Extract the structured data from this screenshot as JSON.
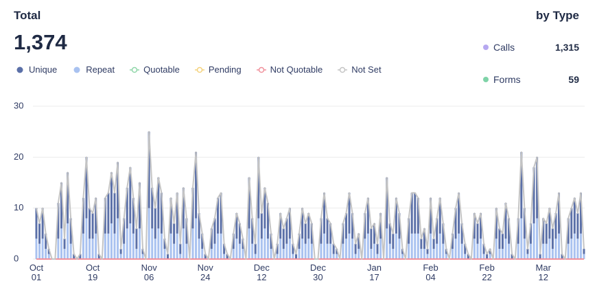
{
  "header": {
    "title": "Total",
    "total": "1,374"
  },
  "by_type": {
    "title": "by Type",
    "items": [
      {
        "name": "Calls",
        "color": "#b6a8f0",
        "label": "1,315"
      },
      {
        "name": "Forms",
        "color": "#7fd3a8",
        "label": "59"
      }
    ]
  },
  "chart_data": {
    "type": "bar",
    "categories": [
      "Oct\n01",
      null,
      null,
      null,
      null,
      null,
      null,
      null,
      null,
      null,
      null,
      null,
      null,
      null,
      null,
      null,
      null,
      null,
      "Oct\n19",
      null,
      null,
      null,
      null,
      null,
      null,
      null,
      null,
      null,
      null,
      null,
      null,
      null,
      null,
      null,
      null,
      null,
      "Nov\n06",
      null,
      null,
      null,
      null,
      null,
      null,
      null,
      null,
      null,
      null,
      null,
      null,
      null,
      null,
      null,
      null,
      null,
      "Nov\n24",
      null,
      null,
      null,
      null,
      null,
      null,
      null,
      null,
      null,
      null,
      null,
      null,
      null,
      null,
      null,
      null,
      null,
      "Dec\n12",
      null,
      null,
      null,
      null,
      null,
      null,
      null,
      null,
      null,
      null,
      null,
      null,
      null,
      null,
      null,
      null,
      null,
      "Dec\n30",
      null,
      null,
      null,
      null,
      null,
      null,
      null,
      null,
      null,
      null,
      null,
      null,
      null,
      null,
      null,
      null,
      null,
      "Jan\n17",
      null,
      null,
      null,
      null,
      null,
      null,
      null,
      null,
      null,
      null,
      null,
      null,
      null,
      null,
      null,
      null,
      null,
      "Feb\n04",
      null,
      null,
      null,
      null,
      null,
      null,
      null,
      null,
      null,
      null,
      null,
      null,
      null,
      null,
      null,
      null,
      null,
      "Feb\n22",
      null,
      null,
      null,
      null,
      null,
      null,
      null,
      null,
      null,
      null,
      null,
      null,
      null,
      null,
      null,
      null,
      null,
      "Mar\n12",
      null,
      null,
      null,
      null,
      null,
      null,
      null,
      null,
      null,
      null,
      null,
      null,
      null
    ],
    "ylim": [
      0,
      30
    ],
    "yticks": [
      0,
      10,
      20,
      30
    ],
    "grid": true,
    "series": [
      {
        "name": "Unique",
        "color": "#5b70a8",
        "style": "bar",
        "values": [
          6,
          4,
          6,
          3,
          1,
          0,
          0,
          7,
          9,
          2,
          10,
          5,
          1,
          0,
          1,
          7,
          12,
          6,
          5,
          7,
          1,
          0,
          7,
          8,
          10,
          8,
          11,
          1,
          5,
          8,
          11,
          7,
          4,
          9,
          1,
          0,
          15,
          8,
          6,
          10,
          8,
          2,
          1,
          7,
          4,
          8,
          2,
          8,
          5,
          0,
          8,
          13,
          5,
          3,
          1,
          0,
          4,
          5,
          7,
          8,
          2,
          1,
          0,
          3,
          5,
          4,
          2,
          0,
          10,
          5,
          2,
          12,
          5,
          8,
          7,
          3,
          0,
          2,
          5,
          4,
          5,
          6,
          2,
          1,
          3,
          6,
          4,
          5,
          4,
          0,
          0,
          5,
          8,
          5,
          4,
          2,
          1,
          0,
          4,
          5,
          8,
          5,
          2,
          3,
          0,
          5,
          7,
          4,
          4,
          2,
          5,
          0,
          10,
          4,
          3,
          7,
          5,
          1,
          0,
          5,
          8,
          8,
          7,
          2,
          4,
          1,
          7,
          2,
          5,
          7,
          4,
          1,
          0,
          3,
          6,
          8,
          4,
          2,
          1,
          0,
          5,
          4,
          5,
          2,
          1,
          1,
          0,
          6,
          4,
          3,
          7,
          5,
          1,
          0,
          5,
          13,
          6,
          1,
          4,
          11,
          12,
          1,
          5,
          4,
          6,
          4,
          5,
          8,
          1,
          0,
          5,
          6,
          7,
          5,
          8,
          1
        ]
      },
      {
        "name": "Repeat",
        "color": "#a9c2f0",
        "style": "bar",
        "values": [
          4,
          3,
          4,
          2,
          1,
          0,
          0,
          4,
          6,
          2,
          7,
          3,
          0,
          0,
          0,
          5,
          8,
          4,
          4,
          5,
          0,
          0,
          5,
          5,
          7,
          5,
          8,
          1,
          3,
          6,
          7,
          5,
          2,
          6,
          1,
          0,
          10,
          6,
          4,
          6,
          5,
          2,
          0,
          5,
          3,
          5,
          1,
          6,
          3,
          0,
          6,
          8,
          4,
          2,
          0,
          0,
          2,
          3,
          5,
          5,
          1,
          0,
          0,
          2,
          4,
          3,
          2,
          0,
          6,
          3,
          1,
          8,
          4,
          6,
          4,
          2,
          0,
          1,
          4,
          2,
          3,
          4,
          1,
          0,
          2,
          4,
          3,
          4,
          3,
          0,
          0,
          3,
          5,
          3,
          3,
          1,
          1,
          0,
          3,
          4,
          5,
          4,
          1,
          2,
          0,
          4,
          5,
          2,
          3,
          1,
          4,
          0,
          6,
          3,
          2,
          5,
          4,
          1,
          0,
          3,
          5,
          5,
          5,
          2,
          2,
          1,
          5,
          2,
          3,
          5,
          3,
          1,
          0,
          2,
          4,
          5,
          3,
          1,
          0,
          0,
          4,
          3,
          4,
          1,
          0,
          1,
          0,
          4,
          2,
          2,
          4,
          3,
          0,
          0,
          3,
          8,
          4,
          1,
          3,
          7,
          8,
          0,
          3,
          3,
          4,
          2,
          4,
          5,
          0,
          0,
          3,
          4,
          5,
          4,
          5,
          1
        ]
      },
      {
        "name": "Quotable",
        "color": "#8fd6a8",
        "style": "line",
        "values": [
          0,
          0,
          0,
          0,
          0,
          0,
          0,
          0,
          0,
          0,
          0,
          0,
          0,
          0,
          0,
          0,
          0,
          0,
          0,
          0,
          0,
          0,
          0,
          0,
          0,
          0,
          0,
          0,
          0,
          0,
          0,
          0,
          0,
          0,
          0,
          0,
          0,
          0,
          0,
          0,
          0,
          0,
          0,
          0,
          0,
          0,
          0,
          0,
          0,
          0,
          0,
          0,
          0,
          0,
          0,
          0,
          0,
          0,
          0,
          0,
          0,
          0,
          0,
          0,
          0,
          0,
          0,
          0,
          0,
          0,
          0,
          0,
          0,
          0,
          0,
          0,
          0,
          0,
          0,
          0,
          0,
          0,
          0,
          0,
          0,
          0,
          0,
          0,
          0,
          0,
          0,
          0,
          0,
          0,
          0,
          0,
          0,
          0,
          0,
          0,
          0,
          0,
          0,
          0,
          0,
          0,
          0,
          0,
          0,
          0,
          0,
          0,
          0,
          0,
          0,
          0,
          0,
          0,
          0,
          0,
          0,
          0,
          0,
          0,
          0,
          0,
          0,
          0,
          0,
          0,
          0,
          0,
          0,
          0,
          0,
          0,
          0,
          0,
          0,
          0,
          0,
          0,
          0,
          0,
          0,
          0,
          0,
          0,
          0,
          0,
          0,
          0,
          0,
          0,
          0,
          0,
          0,
          0,
          0,
          0,
          0,
          0,
          0,
          0,
          0,
          0,
          0,
          0,
          0,
          0,
          0,
          0,
          0,
          0,
          0,
          0
        ]
      },
      {
        "name": "Pending",
        "color": "#f4d27c",
        "style": "line",
        "values": [
          0,
          0,
          0,
          0,
          0,
          0,
          0,
          0,
          0,
          0,
          0,
          0,
          0,
          0,
          0,
          0,
          0,
          0,
          0,
          0,
          0,
          0,
          0,
          0,
          0,
          0,
          0,
          0,
          0,
          0,
          0,
          0,
          0,
          0,
          0,
          0,
          0,
          0,
          0,
          0,
          0,
          0,
          0,
          0,
          0,
          0,
          0,
          0,
          0,
          0,
          0,
          0,
          0,
          0,
          0,
          0,
          0,
          0,
          0,
          0,
          0,
          0,
          0,
          0,
          0,
          0,
          0,
          0,
          0,
          0,
          0,
          0,
          0,
          0,
          0,
          0,
          0,
          0,
          0,
          0,
          0,
          0,
          0,
          0,
          0,
          0,
          0,
          0,
          0,
          0,
          0,
          0,
          0,
          0,
          0,
          0,
          0,
          0,
          0,
          0,
          0,
          0,
          0,
          0,
          0,
          0,
          0,
          0,
          0,
          0,
          0,
          0,
          0,
          0,
          0,
          0,
          0,
          0,
          0,
          0,
          0,
          0,
          0,
          0,
          0,
          0,
          0,
          0,
          0,
          0,
          0,
          0,
          0,
          0,
          0,
          0,
          0,
          0,
          0,
          0,
          0,
          0,
          0,
          0,
          0,
          0,
          0,
          0,
          0,
          0,
          0,
          0,
          0,
          0,
          0,
          0,
          0,
          0,
          0,
          0,
          0,
          0,
          0,
          0,
          0,
          0,
          0,
          0,
          0,
          0,
          0,
          0,
          0,
          0,
          0,
          0
        ]
      },
      {
        "name": "Not Quotable",
        "color": "#f0909b",
        "style": "line",
        "values": [
          0,
          0,
          0,
          0,
          0,
          0,
          0,
          0,
          0,
          0,
          0,
          0,
          0,
          0,
          0,
          0,
          0,
          0,
          0,
          0,
          0,
          0,
          0,
          0,
          0,
          0,
          0,
          0,
          0,
          0,
          0,
          0,
          0,
          0,
          0,
          0,
          0,
          0,
          0,
          0,
          0,
          0,
          0,
          0,
          0,
          0,
          0,
          0,
          0,
          0,
          0,
          0,
          0,
          0,
          0,
          0,
          0,
          0,
          0,
          0,
          0,
          0,
          0,
          0,
          0,
          0,
          0,
          0,
          0,
          0,
          0,
          0,
          0,
          0,
          0,
          0,
          0,
          0,
          0,
          0,
          0,
          0,
          0,
          0,
          0,
          0,
          0,
          0,
          0,
          0,
          0,
          0,
          0,
          0,
          0,
          0,
          0,
          0,
          0,
          0,
          0,
          0,
          0,
          0,
          0,
          0,
          0,
          0,
          0,
          0,
          0,
          0,
          0,
          0,
          0,
          0,
          0,
          0,
          0,
          0,
          0,
          0,
          0,
          0,
          0,
          0,
          0,
          0,
          0,
          0,
          0,
          0,
          0,
          0,
          0,
          0,
          0,
          0,
          0,
          0,
          0,
          0,
          0,
          0,
          0,
          0,
          0,
          0,
          0,
          0,
          0,
          0,
          0,
          0,
          0,
          0,
          0,
          0,
          0,
          0,
          0,
          0,
          0,
          0,
          0,
          0,
          0,
          0,
          0,
          0,
          0,
          0,
          0,
          0,
          0,
          0
        ]
      },
      {
        "name": "Not Set",
        "color": "#c4c4c4",
        "style": "line",
        "values": [
          10,
          7,
          10,
          5,
          2,
          0,
          0,
          11,
          15,
          4,
          17,
          8,
          1,
          0,
          1,
          12,
          20,
          10,
          9,
          12,
          1,
          0,
          12,
          13,
          17,
          13,
          19,
          2,
          8,
          14,
          18,
          12,
          6,
          15,
          2,
          0,
          25,
          14,
          10,
          16,
          13,
          4,
          1,
          12,
          7,
          13,
          3,
          14,
          8,
          0,
          14,
          21,
          9,
          5,
          1,
          0,
          6,
          8,
          12,
          13,
          3,
          1,
          0,
          5,
          9,
          7,
          4,
          0,
          16,
          8,
          3,
          20,
          9,
          14,
          11,
          5,
          0,
          3,
          9,
          6,
          8,
          10,
          3,
          1,
          5,
          10,
          7,
          9,
          7,
          0,
          0,
          8,
          13,
          8,
          7,
          3,
          2,
          0,
          7,
          9,
          13,
          9,
          3,
          5,
          0,
          9,
          12,
          6,
          7,
          3,
          9,
          0,
          16,
          7,
          5,
          12,
          9,
          2,
          0,
          8,
          13,
          13,
          12,
          4,
          6,
          2,
          12,
          4,
          8,
          12,
          7,
          2,
          0,
          5,
          10,
          13,
          7,
          3,
          1,
          0,
          9,
          7,
          9,
          3,
          1,
          2,
          0,
          10,
          6,
          5,
          11,
          8,
          1,
          0,
          8,
          21,
          10,
          2,
          7,
          18,
          20,
          1,
          8,
          7,
          10,
          6,
          9,
          13,
          1,
          0,
          8,
          10,
          12,
          9,
          13,
          2
        ]
      }
    ]
  }
}
